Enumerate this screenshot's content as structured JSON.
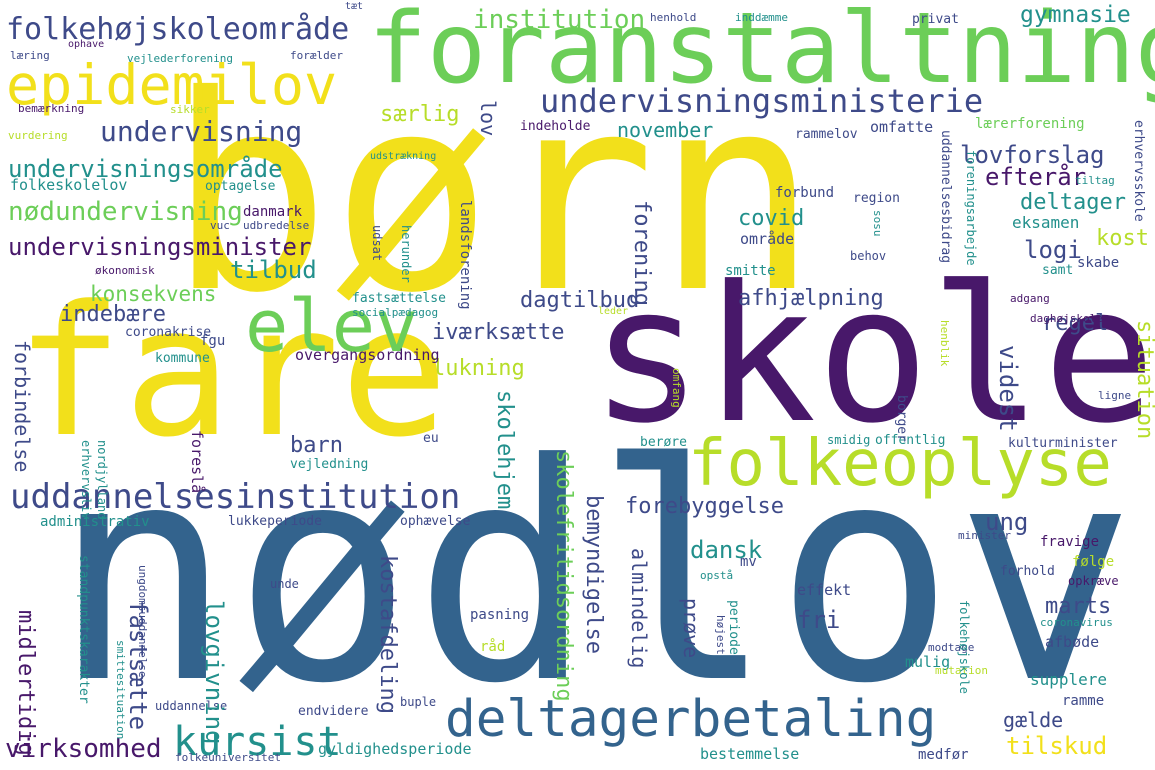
{
  "palette": {
    "yellow": "#f2e01b",
    "lime": "#b7dd29",
    "green": "#6cce58",
    "teal": "#2aa88a",
    "cyan": "#22908c",
    "blue": "#33638d",
    "indigo": "#3e4a89",
    "purple": "#48186a",
    "darkpurple": "#440154"
  },
  "words": {
    "born": "børn",
    "skole": "skole",
    "nodlov": "nødlov",
    "fare": "fare",
    "foranstaltning": "foranstaltning",
    "elev": "elev",
    "epidemilov": "epidemilov",
    "folkeoplyse": "folkeoplyse",
    "deltagerbetaling": "deltagerbetaling",
    "uddannelsesinstitution": "uddannelsesinstitution",
    "undervisningsministerie": "undervisningsministerie",
    "folkehojskoleomrade": "folkehøjskoleområde",
    "undervisning": "undervisning",
    "undervisningsomrade": "undervisningsområde",
    "nodundervisning": "nødundervisning",
    "undervisningsminister": "undervisningsminister",
    "kursist": "kursist",
    "institution": "institution",
    "virksomhed": "virksomhed",
    "konsekvens": "konsekvens",
    "indebaere": "indebære",
    "tilbud": "tilbud",
    "lovforslag": "lovforslag",
    "efterar": "efterår",
    "deltager": "deltager",
    "covid": "covid",
    "logi": "logi",
    "kost": "kost",
    "dagtilbud": "dagtilbud",
    "afhjaelpning": "afhjælpning",
    "regel": "regel",
    "lukning": "lukning",
    "ivaerksaette": "iværksætte",
    "barn": "barn",
    "forebyggelse": "forebyggelse",
    "dansk": "dansk",
    "ung": "ung",
    "marts": "marts",
    "fri": "fri",
    "tilskud": "tilskud",
    "gymnasie": "gymnasie",
    "saerlig": "særlig",
    "november": "november",
    "laererforening": "lærerforening",
    "omfatte": "omfatte",
    "rammelov": "rammelov",
    "indeholde": "indeholde",
    "eksamen": "eksamen",
    "omrade": "område",
    "smitte": "smitte",
    "skabe": "skabe",
    "samt": "samt",
    "behov": "behov",
    "region": "region",
    "forbund": "forbund",
    "tiltag": "tiltag",
    "folkeskolelov": "folkeskolelov",
    "optagelse": "optagelse",
    "danmark": "danmark",
    "udbredelse": "udbredelse",
    "vuc": "vuc",
    "okonomisk": "økonomisk",
    "fgu": "fgu",
    "coronakrise": "coronakrise",
    "kommune": "kommune",
    "overgangsordning": "overgangsordning",
    "fastsaettelse": "fastsættelse",
    "socialpaedagog": "socialpædagog",
    "adgang": "adgang",
    "daghojskole": "daghøjskole",
    "administrativ": "administrativ",
    "lukkeperiode": "lukkeperiode",
    "ophaevelse": "ophævelse",
    "fravige": "fravige",
    "smidig": "smidig",
    "offentlig": "offentlig",
    "kulturminister": "kulturminister",
    "berore": "berøre",
    "vejledning": "vejledning",
    "eu": "eu",
    "forhold": "forhold",
    "folge": "følge",
    "opkraeve": "opkræve",
    "effekt": "effekt",
    "mv": "mv",
    "prove": "prøve",
    "almindelig": "almindelig",
    "mulig": "mulig",
    "afbode": "afbøde",
    "supplere": "supplere",
    "ramme": "ramme",
    "galde": "gælde",
    "bestemmelse": "bestemmelse",
    "medfor": "medfør",
    "gyldighedsperiode": "gyldighedsperiode",
    "folkeuniversitet": "folkeuniversitet",
    "uddannelse": "uddannelse",
    "endvidere": "endvidere",
    "pasning": "pasning",
    "rad": "råd",
    "unde": "unde",
    "buple": "buple",
    "modtage": "modtage",
    "mutation": "mutation",
    "coronavirus": "coronavirus",
    "laering": "læring",
    "ophave": "ophave",
    "vejlederforening": "vejlederforening",
    "foraelder": "forælder",
    "privat": "privat",
    "inddaemme": "inddæmme",
    "henhold": "henhold",
    "taet": "tæt",
    "bemaerkning": "bemærkning",
    "sikker": "sikker",
    "vurdering": "vurdering",
    "udstraekning": "udstrækning",
    "leder": "leder",
    "ligne": "ligne",
    "borger": "borger",
    "opsta": "opstå",
    "minister": "minister",
    "omfang": "omfang",
    "vidst": "videst",
    "situation": "situation",
    "skolehjem": "skolehjem",
    "skolefritidsordning": "skolefritidsordning",
    "bemyndigelse": "bemyndigelse",
    "kostafdeling": "kostafdeling",
    "lovgivning": "lovgivning",
    "fastsaette": "fastsætte",
    "midlertidig": "midlertidig",
    "forbindelse": "forbindelse",
    "lov": "lov",
    "forening": "forening",
    "landsforening": "landsforening",
    "herunder": "herunder",
    "udsat": "udsat",
    "uddannelsesbidrag": "uddannelsesbidrag",
    "foreningsarbejde": "foreningsarbejde",
    "erhvervsskole": "erhvervsskole",
    "sosu": "sosu",
    "foresla": "foreslå",
    "nordjylland": "nordjylland",
    "erhvervsliv": "erhvervsliv",
    "standpunktskarakter": "standpunktskarakter",
    "ungdomsuddannelse": "ungdomsuddannelse",
    "smittesituation": "smittesituation",
    "periode": "periode",
    "hojest": "højest",
    "folkehojskole": "folkehøjskole",
    "henblik": "henblik"
  }
}
